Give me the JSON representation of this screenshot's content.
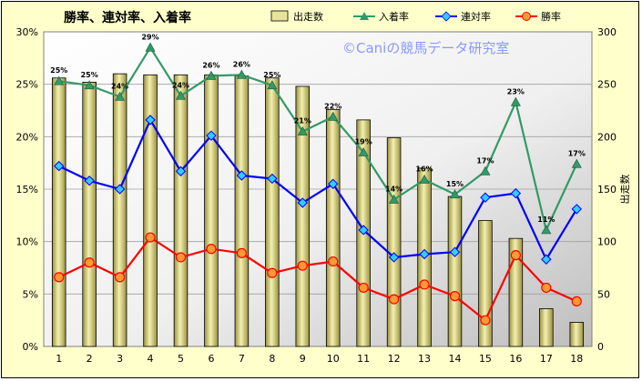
{
  "chart_data": {
    "type": "bar+line",
    "title": "勝率、連対率、入着率",
    "watermark": "©Caniの競馬データ研究室",
    "categories": [
      "1",
      "2",
      "3",
      "4",
      "5",
      "6",
      "7",
      "8",
      "9",
      "10",
      "11",
      "12",
      "13",
      "14",
      "15",
      "16",
      "17",
      "18"
    ],
    "bar_series": {
      "name": "出走数",
      "axis": "right",
      "color": "#e8e39a",
      "values": [
        256,
        252,
        260,
        259,
        259,
        259,
        258,
        256,
        248,
        226,
        216,
        199,
        170,
        143,
        120,
        103,
        36,
        23
      ]
    },
    "line_series": [
      {
        "name": "入着率",
        "axis": "left",
        "color": "#339966",
        "marker": "triangle",
        "values": [
          25.3,
          24.9,
          23.8,
          28.5,
          23.9,
          25.8,
          25.9,
          24.9,
          20.5,
          21.9,
          18.5,
          14.0,
          15.9,
          14.5,
          16.7,
          23.3,
          11.1,
          17.4
        ],
        "labels": [
          "25%",
          "25%",
          "24%",
          "29%",
          "24%",
          "26%",
          "26%",
          "25%",
          "21%",
          "22%",
          "19%",
          "14%",
          "16%",
          "15%",
          "17%",
          "23%",
          "11%",
          "17%"
        ]
      },
      {
        "name": "連対率",
        "axis": "left",
        "color": "#0000ff",
        "marker": "diamond",
        "values": [
          17.2,
          15.8,
          15.0,
          21.6,
          16.7,
          20.1,
          16.3,
          16.0,
          13.7,
          15.5,
          11.1,
          8.5,
          8.8,
          9.0,
          14.2,
          14.6,
          8.3,
          13.1
        ]
      },
      {
        "name": "勝率",
        "axis": "left",
        "color": "#ff0000",
        "marker": "circle",
        "values": [
          6.6,
          8.0,
          6.6,
          10.4,
          8.5,
          9.3,
          8.9,
          7.0,
          7.7,
          8.1,
          5.6,
          4.5,
          5.9,
          4.8,
          2.5,
          8.7,
          5.6,
          4.3
        ]
      }
    ],
    "y_left": {
      "min": 0,
      "max": 30,
      "step": 5,
      "format": "percent",
      "ticks": [
        "0%",
        "5%",
        "10%",
        "15%",
        "20%",
        "25%",
        "30%"
      ]
    },
    "y_right": {
      "min": 0,
      "max": 300,
      "step": 50,
      "label": "出走数",
      "ticks": [
        "0",
        "50",
        "100",
        "150",
        "200",
        "250",
        "300"
      ]
    },
    "grid": true,
    "legend_position": "top"
  }
}
